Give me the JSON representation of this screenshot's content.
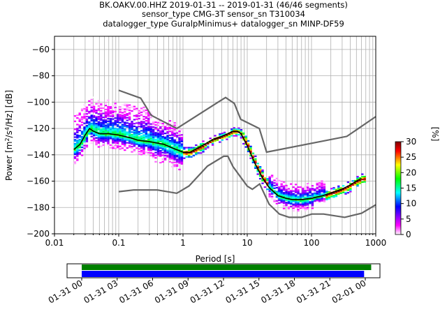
{
  "title_lines": [
    "BK.OAKV.00.HHZ   2019-01-31 -- 2019-01-31  (46/46 segments)",
    "sensor_type CMG-3T sensor_sn T310034",
    "datalogger_type GuralpMinimus+ datalogger_sn MINP-DF59"
  ],
  "chart_data": [
    {
      "type": "heatmap",
      "title": "BK.OAKV.00.HHZ   2019-01-31 -- 2019-01-31  (46/46 segments)",
      "xlabel": "Period [s]",
      "ylabel": "Power [m²/s⁴/Hz] [dB]",
      "xscale": "log",
      "xlim": [
        0.01,
        1000
      ],
      "ylim": [
        -200,
        -50
      ],
      "x_ticks": [
        "0.01",
        "0.1",
        "1",
        "10",
        "100",
        "1000"
      ],
      "y_ticks": [
        "−60",
        "−80",
        "−100",
        "−120",
        "−140",
        "−160",
        "−180",
        "−200"
      ],
      "grid": true,
      "colorbar": {
        "label": "[%]",
        "range": [
          0,
          30
        ],
        "ticks": [
          "0",
          "5",
          "10",
          "15",
          "20",
          "25",
          "30"
        ],
        "colors": [
          "#ffffff",
          "#ff00ff",
          "#0000ff",
          "#00ffff",
          "#00ff00",
          "#ffff00",
          "#ff0000",
          "#800000"
        ]
      },
      "series": [
        {
          "role": "mode",
          "color": "#000000",
          "x": [
            0.02,
            0.025,
            0.03,
            0.035,
            0.04,
            0.05,
            0.07,
            0.1,
            0.15,
            0.2,
            0.3,
            0.5,
            0.7,
            1.0,
            1.3,
            2.0,
            3.0,
            4.0,
            5.0,
            6.0,
            7.0,
            8.0,
            10,
            13,
            17,
            22,
            30,
            40,
            50,
            70,
            100,
            150,
            200,
            300,
            400,
            500,
            600
          ],
          "y": [
            -136,
            -132,
            -125,
            -120,
            -122,
            -124,
            -124,
            -125,
            -127,
            -129,
            -130,
            -132,
            -135,
            -138,
            -138,
            -133,
            -128,
            -126,
            -124,
            -122,
            -122,
            -124,
            -133,
            -146,
            -157,
            -165,
            -171,
            -173,
            -174,
            -174,
            -173,
            -171,
            -169,
            -166,
            -163,
            -160,
            -158
          ]
        },
        {
          "role": "high-noise-model",
          "color": "#666666",
          "x": [
            0.1,
            0.22,
            0.32,
            0.8,
            3.8,
            4.6,
            6.3,
            7.9,
            15.4,
            20,
            354.8,
            1000
          ],
          "y": [
            -91,
            -97,
            -110,
            -120,
            -99,
            -96.5,
            -101,
            -113,
            -120,
            -138,
            -126,
            -111
          ]
        },
        {
          "role": "low-noise-model",
          "color": "#666666",
          "x": [
            0.1,
            0.17,
            0.4,
            0.8,
            1.24,
            2.4,
            4.3,
            5.0,
            6.0,
            10.0,
            12.0,
            15.6,
            21.9,
            31.6,
            45.0,
            70.0,
            101.0,
            154.0,
            328.0,
            600.0,
            1000.0
          ],
          "y": [
            -168,
            -166.7,
            -166.7,
            -169.2,
            -163.7,
            -148.6,
            -141.1,
            -141.1,
            -149.0,
            -163.8,
            -166.2,
            -162.1,
            -177.5,
            -185.0,
            -187.5,
            -187.5,
            -185.0,
            -185.0,
            -187.5,
            -184.4,
            -178
          ]
        }
      ]
    },
    {
      "type": "bar",
      "role": "data-coverage",
      "x_ticks": [
        "01-31 00",
        "01-31 03",
        "01-31 06",
        "01-31 09",
        "01-31 12",
        "01-31 15",
        "01-31 18",
        "01-31 21",
        "02-01 00"
      ],
      "series": [
        {
          "color": "#008000",
          "start_h": 0.0,
          "end_h": 24.5
        },
        {
          "color": "#0000ff",
          "start_h": 0.0,
          "end_h": 23.9
        }
      ]
    }
  ]
}
